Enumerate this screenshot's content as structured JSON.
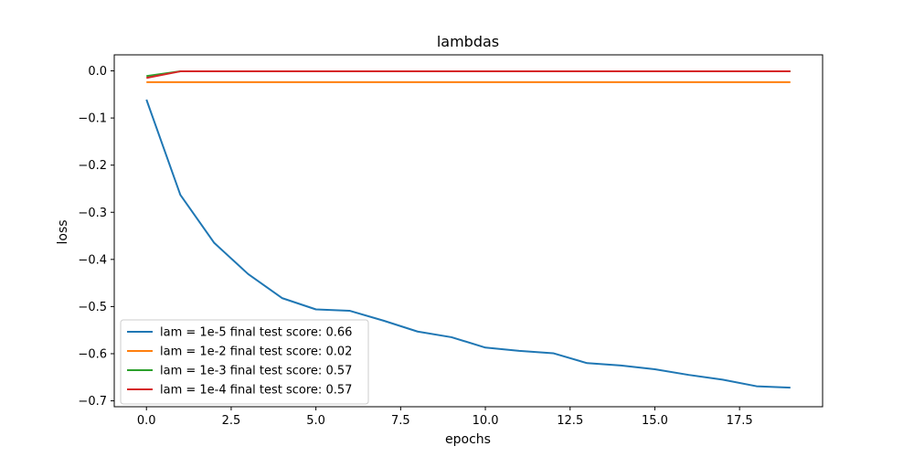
{
  "chart_data": {
    "type": "line",
    "title": "lambdas",
    "xlabel": "epochs",
    "ylabel": "loss",
    "xlim": [
      -0.95,
      19.95
    ],
    "ylim": [
      -0.7125,
      0.034
    ],
    "xticks": [
      0.0,
      2.5,
      5.0,
      7.5,
      10.0,
      12.5,
      15.0,
      17.5
    ],
    "xtick_labels": [
      "0.0",
      "2.5",
      "5.0",
      "7.5",
      "10.0",
      "12.5",
      "15.0",
      "17.5"
    ],
    "yticks": [
      0.0,
      -0.1,
      -0.2,
      -0.3,
      -0.4,
      -0.5,
      -0.6,
      -0.7
    ],
    "ytick_labels": [
      "0.0",
      "−0.1",
      "−0.2",
      "−0.3",
      "−0.4",
      "−0.5",
      "−0.6",
      "−0.7"
    ],
    "legend_position": "lower-left",
    "grid": false,
    "x": [
      0,
      1,
      2,
      3,
      4,
      5,
      6,
      7,
      8,
      9,
      10,
      11,
      12,
      13,
      14,
      15,
      16,
      17,
      18,
      19
    ],
    "series": [
      {
        "name": "lam = 1e-5 final test score: 0.66",
        "color": "#1f77b4",
        "values": [
          -0.061,
          -0.263,
          -0.365,
          -0.431,
          -0.482,
          -0.506,
          -0.509,
          -0.53,
          -0.553,
          -0.565,
          -0.587,
          -0.594,
          -0.599,
          -0.62,
          -0.625,
          -0.633,
          -0.645,
          -0.655,
          -0.669,
          -0.672
        ]
      },
      {
        "name": "lam = 1e-2 final test score: 0.02",
        "color": "#ff7f0e",
        "values": [
          -0.024,
          -0.024,
          -0.024,
          -0.024,
          -0.024,
          -0.024,
          -0.024,
          -0.024,
          -0.024,
          -0.024,
          -0.024,
          -0.024,
          -0.024,
          -0.024,
          -0.024,
          -0.024,
          -0.024,
          -0.024,
          -0.024,
          -0.024
        ]
      },
      {
        "name": "lam = 1e-3 final test score: 0.57",
        "color": "#2ca02c",
        "values": [
          -0.011,
          -0.001,
          -0.001,
          -0.001,
          -0.001,
          -0.001,
          -0.001,
          -0.001,
          -0.001,
          -0.001,
          -0.001,
          -0.001,
          -0.001,
          -0.001,
          -0.001,
          -0.001,
          -0.001,
          -0.001,
          -0.001,
          -0.001
        ]
      },
      {
        "name": "lam = 1e-4 final test score: 0.57",
        "color": "#d62728",
        "values": [
          -0.015,
          -0.001,
          -0.001,
          -0.001,
          -0.001,
          -0.001,
          -0.001,
          -0.001,
          -0.001,
          -0.001,
          -0.001,
          -0.001,
          -0.001,
          -0.001,
          -0.001,
          -0.001,
          -0.001,
          -0.001,
          -0.001,
          -0.001
        ]
      }
    ]
  }
}
